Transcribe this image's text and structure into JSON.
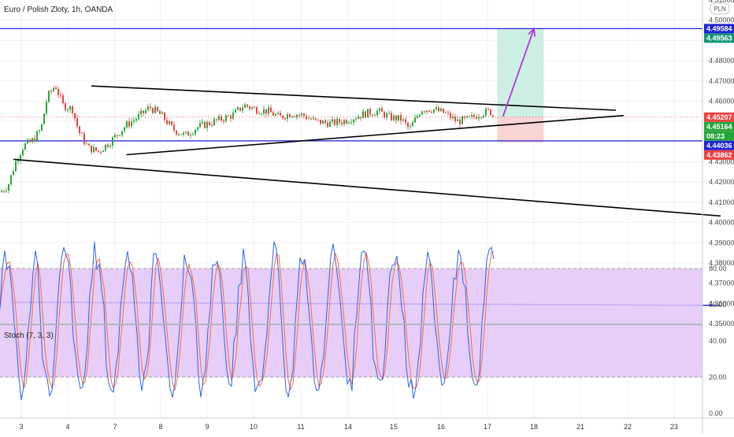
{
  "chart_data": {
    "type": "candlestick",
    "title": "Euro / Polish Zloty, 1h, OANDA",
    "currency_badge": "PLN",
    "y_ticks": [
      "4.51000",
      "4.50000",
      "4.49000",
      "4.48000",
      "4.47000",
      "4.46000",
      "4.45000",
      "4.44000",
      "4.43000",
      "4.42000",
      "4.41000",
      "4.40000",
      "4.39000",
      "4.38000",
      "4.37000",
      "4.36000",
      "4.35000"
    ],
    "y_range": [
      4.35,
      4.51
    ],
    "x_ticks": [
      "3",
      "4",
      "7",
      "8",
      "9",
      "10",
      "11",
      "14",
      "15",
      "16",
      "17",
      "18",
      "21",
      "22",
      "23"
    ],
    "price_tags": [
      {
        "label": "4.49584",
        "value": 4.49584,
        "color": "#1e22d8"
      },
      {
        "label": "4.49563",
        "value": 4.49563,
        "color": "#16967a"
      },
      {
        "label": "4.45207",
        "value": 4.45207,
        "color": "#ef4040"
      },
      {
        "label": "4.45164",
        "value": 4.45164,
        "color": "#26a63a"
      },
      {
        "label": "08:23",
        "value": 4.4504,
        "color": "#26a63a"
      },
      {
        "label": "4.44036",
        "value": 4.44036,
        "color": "#1e22d8"
      },
      {
        "label": "4.43862",
        "value": 4.43862,
        "color": "#ef4040"
      }
    ],
    "horizontal_lines": [
      {
        "value": 4.49584,
        "color": "#1e22d8"
      },
      {
        "value": 4.44036,
        "color": "#1e22d8"
      }
    ],
    "trend_lines": [
      {
        "from": [
          "4 12:00",
          4.4675
        ],
        "to": [
          "21 18:00",
          4.4555
        ],
        "color": "#000000"
      },
      {
        "from": [
          "7 06:00",
          4.4335
        ],
        "to": [
          "21 22:00",
          4.4529
        ],
        "color": "#000000"
      },
      {
        "from": [
          "2 20:00",
          4.4312
        ],
        "to": [
          "24 00:00",
          4.4032
        ],
        "color": "#000000"
      },
      {
        "from": [
          "2 20:00",
          4.3606
        ],
        "to": [
          "24 00:00",
          4.359
        ],
        "color": "#1e22d8"
      }
    ],
    "projection_arrow": {
      "from": [
        "17 08:00",
        4.4524
      ],
      "to": [
        "18 00:00",
        4.4958
      ],
      "color": "#b536d8"
    },
    "position": {
      "entry": 4.4522,
      "target": 4.4958,
      "stop": 4.4395,
      "x_range": [
        "17 05:00",
        "18 05:00"
      ],
      "profit_color": "#cdeee4",
      "loss_color": "#f8d4d4"
    },
    "candle_colors": {
      "up": "#26a63a",
      "down": "#ef4040"
    },
    "indicator": {
      "name": "Stoch (7, 3, 3)",
      "type": "stochastic",
      "y_ticks": [
        "80.00",
        "60.00",
        "40.00",
        "20.00",
        "0.00"
      ],
      "bands": [
        20,
        80
      ],
      "band_color": "#e2c6f8",
      "k_color": "#2962ff",
      "d_color": "#ff6d2e"
    }
  }
}
